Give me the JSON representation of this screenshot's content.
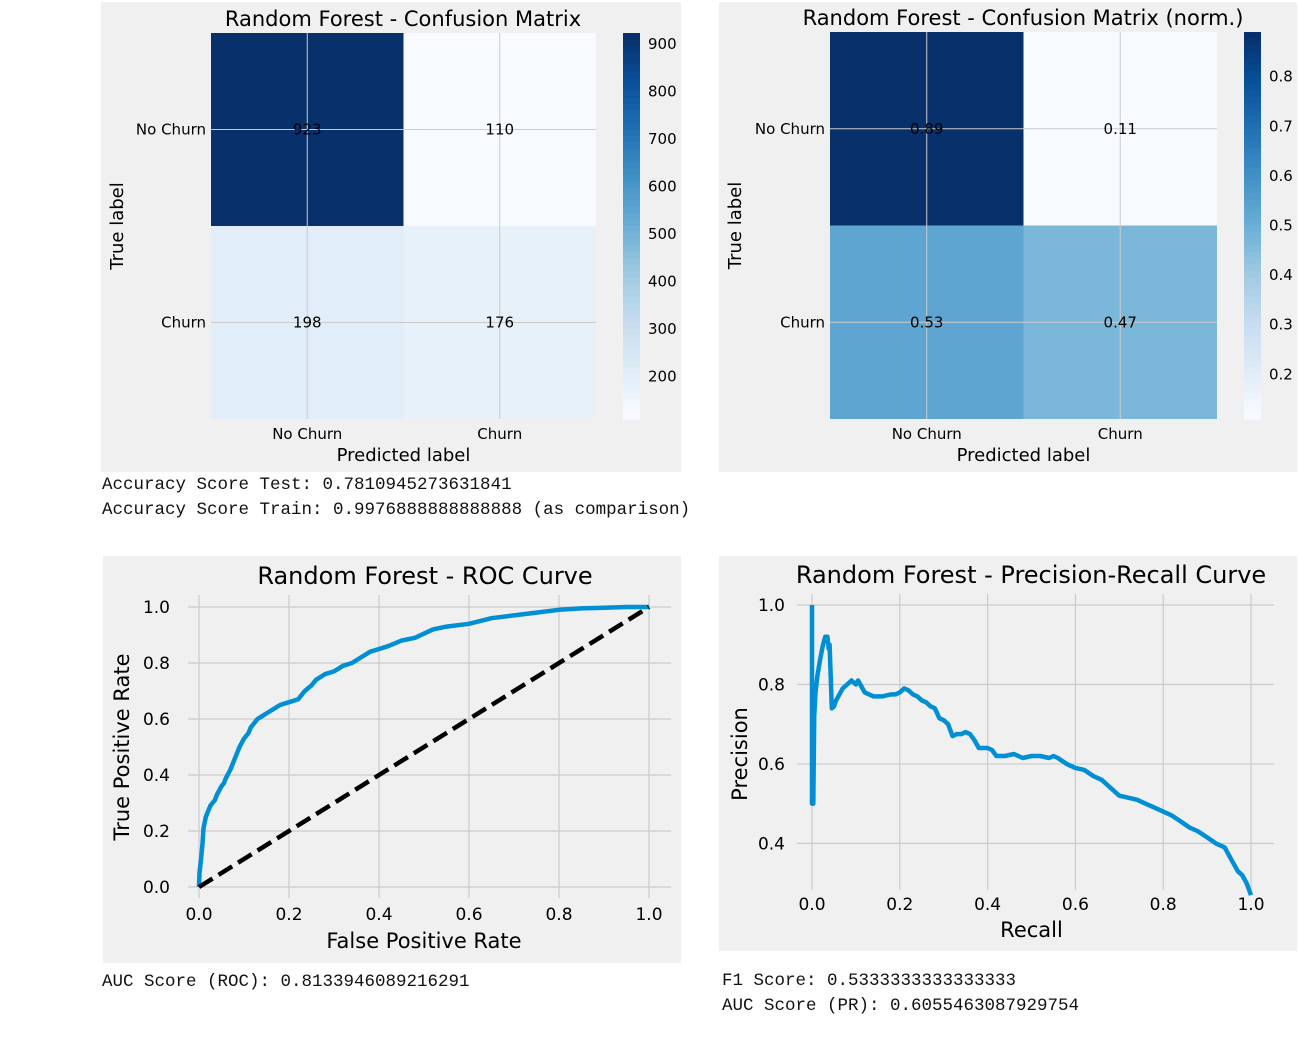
{
  "chart_data": [
    {
      "type": "heatmap",
      "title": "Random Forest - Confusion Matrix",
      "xlabel": "Predicted label",
      "ylabel": "True label",
      "x_categories": [
        "No Churn",
        "Churn"
      ],
      "y_categories": [
        "No Churn",
        "Churn"
      ],
      "values": [
        [
          923,
          110
        ],
        [
          198,
          176
        ]
      ],
      "value_labels": [
        [
          "923",
          "110"
        ],
        [
          "198",
          "176"
        ]
      ],
      "colorbar": {
        "range": [
          110,
          923
        ],
        "ticks": [
          900,
          800,
          700,
          600,
          500,
          400,
          300,
          200
        ],
        "colormap": "Blues"
      },
      "grid": true
    },
    {
      "type": "heatmap",
      "title": "Random Forest - Confusion Matrix (norm.)",
      "xlabel": "Predicted label",
      "ylabel": "True label",
      "x_categories": [
        "No Churn",
        "Churn"
      ],
      "y_categories": [
        "No Churn",
        "Churn"
      ],
      "values": [
        [
          0.89,
          0.11
        ],
        [
          0.53,
          0.47
        ]
      ],
      "value_labels": [
        [
          "0.89",
          "0.11"
        ],
        [
          "0.53",
          "0.47"
        ]
      ],
      "colorbar": {
        "range": [
          0.11,
          0.89
        ],
        "ticks": [
          "0.8",
          "0.7",
          "0.6",
          "0.5",
          "0.4",
          "0.3",
          "0.2"
        ],
        "colormap": "Blues"
      },
      "grid": true
    },
    {
      "type": "line",
      "title": "Random Forest - ROC Curve",
      "xlabel": "False Positive Rate",
      "ylabel": "True Positive Rate",
      "xlim": [
        0,
        1
      ],
      "ylim": [
        0,
        1
      ],
      "xticks": [
        "0.0",
        "0.2",
        "0.4",
        "0.6",
        "0.8",
        "1.0"
      ],
      "yticks": [
        "0.0",
        "0.2",
        "0.4",
        "0.6",
        "0.8",
        "1.0"
      ],
      "grid": true,
      "series": [
        {
          "color": "#008fd5",
          "style": "solid",
          "x": [
            0,
            0.001,
            0.005,
            0.008,
            0.01,
            0.015,
            0.02,
            0.025,
            0.03,
            0.035,
            0.04,
            0.05,
            0.055,
            0.06,
            0.07,
            0.08,
            0.09,
            0.1,
            0.11,
            0.115,
            0.12,
            0.13,
            0.14,
            0.15,
            0.16,
            0.17,
            0.18,
            0.2,
            0.22,
            0.235,
            0.25,
            0.26,
            0.27,
            0.28,
            0.3,
            0.32,
            0.34,
            0.36,
            0.38,
            0.4,
            0.42,
            0.45,
            0.48,
            0.52,
            0.55,
            0.6,
            0.65,
            0.7,
            0.75,
            0.8,
            0.85,
            0.9,
            0.95,
            1.0
          ],
          "y": [
            0,
            0.05,
            0.11,
            0.16,
            0.21,
            0.25,
            0.27,
            0.29,
            0.3,
            0.31,
            0.33,
            0.36,
            0.37,
            0.39,
            0.42,
            0.46,
            0.5,
            0.53,
            0.55,
            0.57,
            0.58,
            0.6,
            0.61,
            0.62,
            0.63,
            0.64,
            0.65,
            0.66,
            0.67,
            0.7,
            0.72,
            0.74,
            0.75,
            0.76,
            0.77,
            0.79,
            0.8,
            0.82,
            0.84,
            0.85,
            0.86,
            0.88,
            0.89,
            0.92,
            0.93,
            0.94,
            0.96,
            0.97,
            0.98,
            0.99,
            0.995,
            0.997,
            1.0,
            1.0
          ]
        },
        {
          "color": "#000000",
          "style": "dashed",
          "x": [
            0,
            1
          ],
          "y": [
            0,
            1
          ]
        }
      ],
      "note": "AUC Score (ROC): 0.8133946089216291"
    },
    {
      "type": "line",
      "title": "Random Forest - Precision-Recall Curve",
      "xlabel": "Recall",
      "ylabel": "Precision",
      "xlim": [
        0,
        1
      ],
      "ylim": [
        0.25,
        1.0
      ],
      "xticks": [
        "0.0",
        "0.2",
        "0.4",
        "0.6",
        "0.8",
        "1.0"
      ],
      "yticks": [
        "0.4",
        "0.6",
        "0.8",
        "1.0"
      ],
      "grid": true,
      "series": [
        {
          "color": "#008fd5",
          "style": "solid",
          "x": [
            0.0,
            0.0,
            0.003,
            0.005,
            0.008,
            0.012,
            0.018,
            0.025,
            0.03,
            0.035,
            0.038,
            0.04,
            0.045,
            0.05,
            0.055,
            0.06,
            0.07,
            0.08,
            0.09,
            0.095,
            0.1,
            0.105,
            0.11,
            0.12,
            0.13,
            0.14,
            0.15,
            0.16,
            0.18,
            0.19,
            0.2,
            0.21,
            0.22,
            0.23,
            0.24,
            0.25,
            0.26,
            0.27,
            0.28,
            0.29,
            0.3,
            0.31,
            0.32,
            0.33,
            0.34,
            0.35,
            0.36,
            0.37,
            0.38,
            0.4,
            0.41,
            0.42,
            0.44,
            0.46,
            0.48,
            0.5,
            0.52,
            0.54,
            0.55,
            0.56,
            0.58,
            0.6,
            0.62,
            0.64,
            0.66,
            0.68,
            0.7,
            0.72,
            0.74,
            0.76,
            0.78,
            0.8,
            0.82,
            0.84,
            0.86,
            0.88,
            0.9,
            0.92,
            0.94,
            0.95,
            0.96,
            0.97,
            0.98,
            0.99,
            1.0
          ],
          "y": [
            1.0,
            0.5,
            0.5,
            0.72,
            0.78,
            0.82,
            0.86,
            0.9,
            0.92,
            0.92,
            0.89,
            0.9,
            0.74,
            0.745,
            0.76,
            0.77,
            0.79,
            0.8,
            0.81,
            0.805,
            0.8,
            0.81,
            0.8,
            0.78,
            0.775,
            0.77,
            0.77,
            0.77,
            0.775,
            0.775,
            0.78,
            0.79,
            0.785,
            0.775,
            0.77,
            0.76,
            0.755,
            0.745,
            0.74,
            0.715,
            0.71,
            0.7,
            0.67,
            0.675,
            0.675,
            0.68,
            0.675,
            0.66,
            0.64,
            0.64,
            0.635,
            0.62,
            0.62,
            0.625,
            0.615,
            0.62,
            0.62,
            0.615,
            0.62,
            0.615,
            0.6,
            0.59,
            0.585,
            0.57,
            0.56,
            0.54,
            0.52,
            0.515,
            0.51,
            0.5,
            0.49,
            0.48,
            0.47,
            0.455,
            0.44,
            0.43,
            0.415,
            0.4,
            0.39,
            0.37,
            0.35,
            0.33,
            0.32,
            0.3,
            0.27
          ]
        }
      ],
      "note": [
        "F1 Score: 0.5333333333333333",
        "AUC Score (PR): 0.6055463087929754"
      ]
    }
  ],
  "text": {
    "accuracy_test": "Accuracy Score Test: 0.7810945273631841",
    "accuracy_train": "Accuracy Score Train: 0.9976888888888888 (as comparison)",
    "auc_roc": "AUC Score (ROC): 0.8133946089216291",
    "f1": "F1 Score: 0.5333333333333333",
    "auc_pr": "AUC Score (PR): 0.6055463087929754"
  },
  "colors": {
    "panel_bg": "#f0f0f0",
    "grid": "#cbcbcb",
    "line": "#008fd5",
    "diag": "#000000",
    "blues_dark": "#08306b",
    "blues_light": "#f7fbff"
  }
}
